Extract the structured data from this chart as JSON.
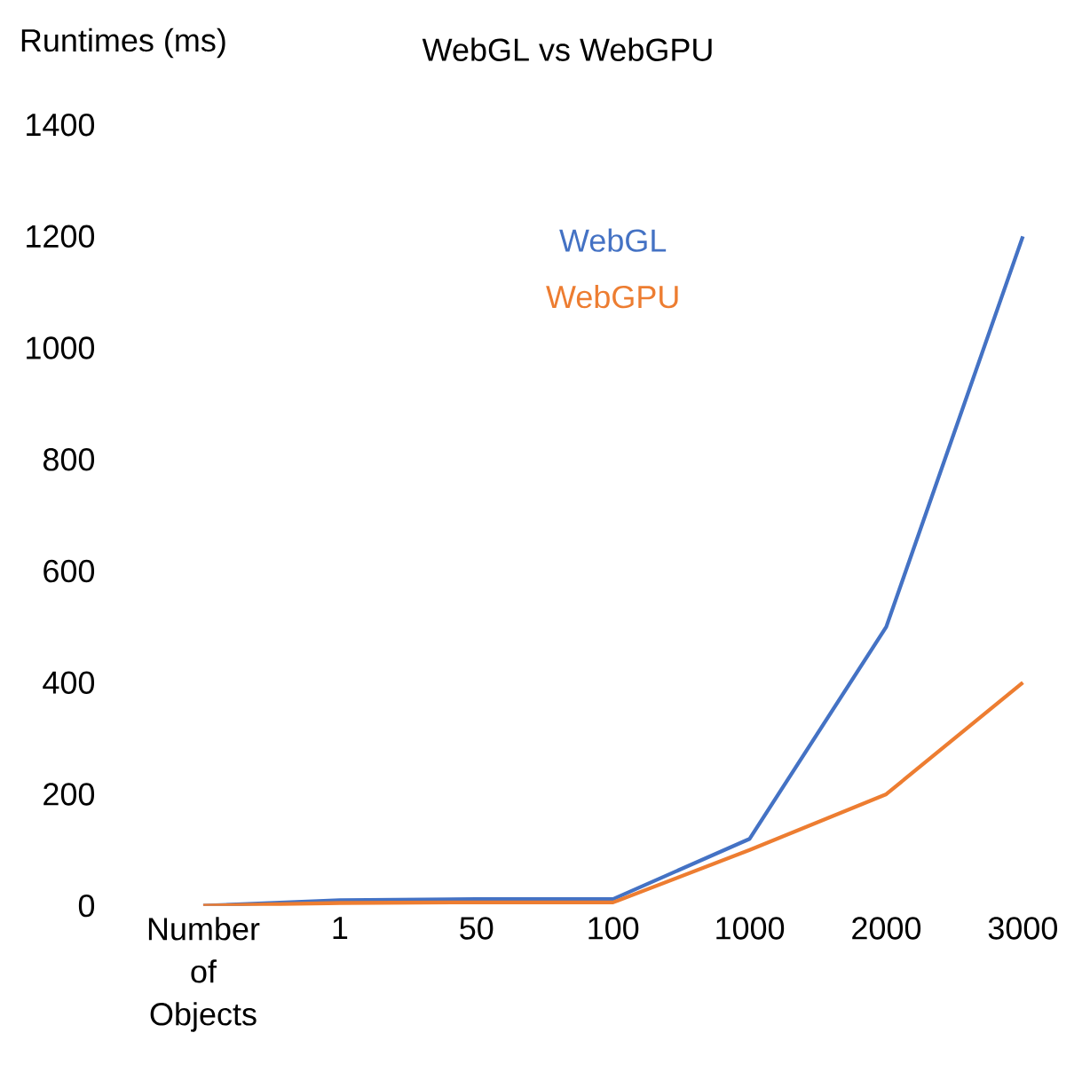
{
  "chart_data": {
    "type": "line",
    "title": "WebGL vs WebGPU",
    "ylabel": "Runtimes (ms)",
    "categories": [
      "Number of Objects",
      "1",
      "50",
      "100",
      "1000",
      "2000",
      "3000"
    ],
    "series": [
      {
        "name": "WebGL",
        "color": "#4472c4",
        "values": [
          0,
          10,
          12,
          12,
          120,
          500,
          1200
        ]
      },
      {
        "name": "WebGPU",
        "color": "#ed7d31",
        "values": [
          0,
          5,
          6,
          6,
          100,
          200,
          400
        ]
      }
    ],
    "ylim": [
      0,
      1400
    ],
    "yticks": [
      0,
      200,
      400,
      600,
      800,
      1000,
      1200,
      1400
    ],
    "legend": "top",
    "grid": false,
    "marker": "none",
    "line_style": "solid"
  }
}
